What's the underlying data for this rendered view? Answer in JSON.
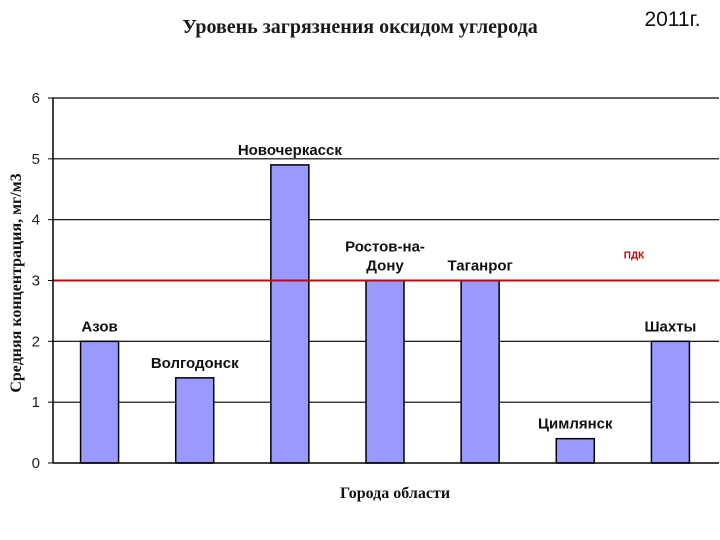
{
  "chart_data": {
    "type": "bar",
    "title": "Уровень загрязнения оксидом углерода",
    "year": "2011г.",
    "xlabel": "Города области",
    "ylabel": "Средняя концентрация, мг/м3",
    "ylim": [
      0,
      6
    ],
    "yticks": [
      "0",
      "1",
      "2",
      "3",
      "4",
      "5",
      "6"
    ],
    "grid": "horizontal",
    "bar_color": "#9999ff",
    "categories": [
      {
        "label_lines": [
          "Азов"
        ],
        "value": 2.0
      },
      {
        "label_lines": [
          "Волгодонск"
        ],
        "value": 1.4
      },
      {
        "label_lines": [
          "Новочеркасск"
        ],
        "value": 4.9
      },
      {
        "label_lines": [
          "Ростов-на-",
          "Дону"
        ],
        "value": 3.0
      },
      {
        "label_lines": [
          "Таганрог"
        ],
        "value": 3.0
      },
      {
        "label_lines": [
          "Цимлянск"
        ],
        "value": 0.4
      },
      {
        "label_lines": [
          "Шахты"
        ],
        "value": 2.0
      }
    ],
    "reference_line": {
      "label": "ПДК",
      "value": 3,
      "color": "#cc0000"
    }
  }
}
